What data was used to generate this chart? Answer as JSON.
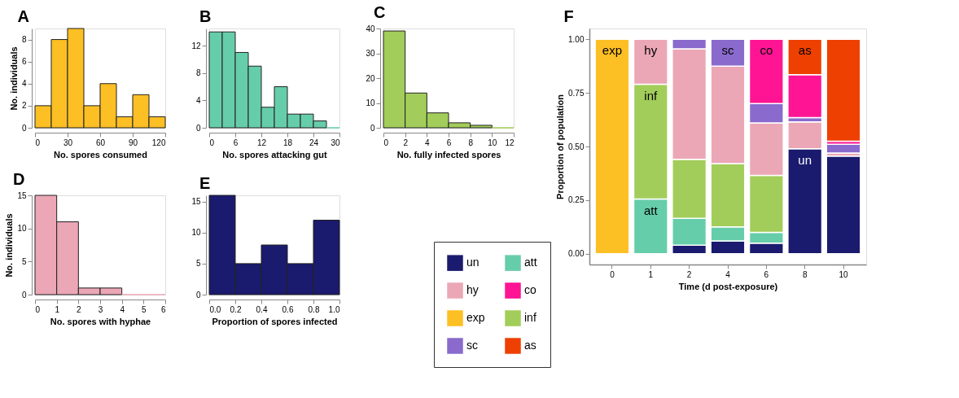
{
  "chart_data": [
    {
      "type": "histogram",
      "title": "A",
      "xlabel": "No. spores consumed",
      "ylabel": "No. individuals",
      "color": "#fcbf24",
      "bins": [
        0,
        15,
        30,
        45,
        60,
        75,
        90,
        105,
        120
      ],
      "values": [
        2,
        8,
        9,
        2,
        4,
        1,
        3,
        1
      ],
      "xlim": [
        0,
        120
      ],
      "xticks": [
        0,
        30,
        60,
        90,
        120
      ],
      "ylim": [
        0,
        9
      ],
      "yticks": [
        0,
        2,
        4,
        6,
        8
      ]
    },
    {
      "type": "histogram",
      "title": "B",
      "xlabel": "No. spores attacking gut",
      "color": "#66cdaa",
      "bins": [
        0,
        3,
        6,
        9,
        12,
        15,
        18,
        21,
        24,
        27,
        30
      ],
      "values": [
        14,
        14,
        11,
        9,
        3,
        6,
        2,
        2,
        1,
        0
      ],
      "xlim": [
        0,
        30
      ],
      "xticks": [
        0,
        6,
        12,
        18,
        24,
        30
      ],
      "ylim": [
        0,
        14.5
      ],
      "yticks": [
        0,
        4,
        8,
        12
      ]
    },
    {
      "type": "histogram",
      "title": "C",
      "xlabel": "No. fully infected spores",
      "color": "#a2cd5a",
      "bins": [
        0,
        2,
        4,
        6,
        8,
        10,
        12
      ],
      "values": [
        39,
        14,
        6,
        2,
        1,
        0
      ],
      "xlim": [
        0,
        12
      ],
      "xticks": [
        0,
        2,
        4,
        6,
        8,
        10,
        12
      ],
      "ylim": [
        0,
        40
      ],
      "yticks": [
        0,
        10,
        20,
        30,
        40
      ]
    },
    {
      "type": "histogram",
      "title": "D",
      "xlabel": "No. spores with hyphae",
      "ylabel": "No. individuals",
      "color": "#eba7b6",
      "bins": [
        0,
        1,
        2,
        3,
        4,
        5,
        6
      ],
      "values": [
        15,
        11,
        1,
        1,
        0,
        0
      ],
      "xlim": [
        0,
        6
      ],
      "xticks": [
        0,
        1,
        2,
        3,
        4,
        5,
        6
      ],
      "ylim": [
        0,
        15
      ],
      "yticks": [
        0,
        5,
        10,
        15
      ]
    },
    {
      "type": "histogram",
      "title": "E",
      "xlabel": "Proportion of spores infected",
      "color": "#1a1a6e",
      "bins": [
        0,
        0.2,
        0.4,
        0.6,
        0.8,
        1.0
      ],
      "values": [
        16,
        5,
        8,
        5,
        12
      ],
      "xlim": [
        0,
        1
      ],
      "xticks": [
        {
          "value": 0,
          "label": "0.0"
        },
        {
          "value": 0.2,
          "label": "0.2"
        },
        {
          "value": 0.4,
          "label": "0.4"
        },
        {
          "value": 0.6,
          "label": "0.6"
        },
        {
          "value": 0.8,
          "label": "0.8"
        },
        {
          "value": 1,
          "label": "1.0"
        }
      ],
      "ylim": [
        0,
        16
      ],
      "yticks": [
        0,
        5,
        10,
        15
      ]
    },
    {
      "type": "bar",
      "stacked": true,
      "title": "F",
      "xlabel": "Time (d post-exposure)",
      "ylabel": "Proportion of population",
      "legend": "left",
      "categories": [
        "0",
        "1",
        "2",
        "4",
        "6",
        "8",
        "10"
      ],
      "series": [
        {
          "name": "un",
          "color": "#1a1a6e",
          "values": [
            null,
            null,
            0.04,
            0.06,
            0.05,
            0.49,
            0.455
          ]
        },
        {
          "name": "exp",
          "color": "#fcbf24",
          "values": [
            1.0,
            null,
            null,
            null,
            null,
            null,
            null
          ]
        },
        {
          "name": "att",
          "color": "#66cdaa",
          "values": [
            null,
            0.255,
            0.125,
            0.065,
            0.05,
            null,
            null
          ]
        },
        {
          "name": "inf",
          "color": "#a2cd5a",
          "values": [
            null,
            0.535,
            0.275,
            0.295,
            0.265,
            null,
            null
          ]
        },
        {
          "name": "hy",
          "color": "#eba7b6",
          "values": [
            null,
            0.21,
            0.515,
            0.455,
            0.245,
            0.125,
            0.015
          ]
        },
        {
          "name": "sc",
          "color": "#8a6acc",
          "values": [
            null,
            null,
            0.045,
            0.125,
            0.09,
            0.02,
            0.04
          ]
        },
        {
          "name": "co",
          "color": "#ff1493",
          "values": [
            null,
            null,
            null,
            null,
            0.3,
            0.2,
            0.015
          ]
        },
        {
          "name": "as",
          "color": "#ee4000",
          "values": [
            null,
            null,
            null,
            null,
            null,
            0.165,
            0.475
          ]
        }
      ],
      "ylim": [
        -0.05,
        1.05
      ],
      "yticks": [
        {
          "value": 0,
          "label": "0.00"
        },
        {
          "value": 0.25,
          "label": "0.25"
        },
        {
          "value": 0.5,
          "label": "0.50"
        },
        {
          "value": 0.75,
          "label": "0.75"
        },
        {
          "value": 1,
          "label": "1.00"
        }
      ],
      "annotations": [
        {
          "text": "exp",
          "x": "0",
          "y": 1.0
        },
        {
          "text": "att",
          "x": "1",
          "y": 0.255
        },
        {
          "text": "inf",
          "x": "1",
          "y": 0.79
        },
        {
          "text": "hy",
          "x": "1",
          "y": 1.0
        },
        {
          "text": "sc",
          "x": "4",
          "y": 1.0
        },
        {
          "text": "co",
          "x": "6",
          "y": 1.0
        },
        {
          "text": "un",
          "x": "8",
          "y": 0.49
        },
        {
          "text": "as",
          "x": "8",
          "y": 1.0
        }
      ]
    }
  ]
}
